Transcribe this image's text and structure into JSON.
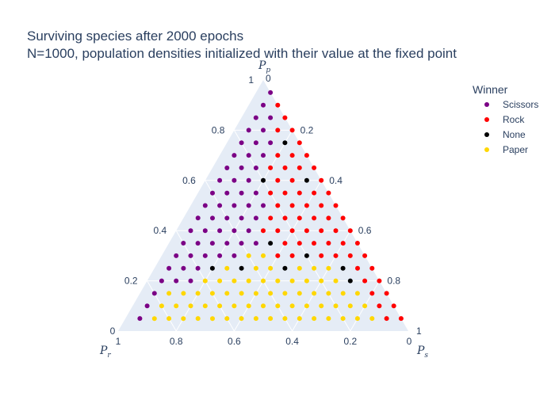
{
  "chart_data": {
    "type": "scatter",
    "subtype": "ternary",
    "title": "Surviving species after 2000 epochs",
    "subtitle": "N=1000, population densities initialized with their value at the fixed point",
    "axes": {
      "a": {
        "label": "P",
        "sub": "p",
        "ticks": [
          "0.2",
          "0.4",
          "0.6",
          "0.8",
          "1"
        ],
        "zero": "0"
      },
      "b": {
        "label": "P",
        "sub": "r",
        "ticks": [
          "0.2",
          "0.4",
          "0.6",
          "0.8",
          "1"
        ],
        "zero": "0"
      },
      "c": {
        "label": "P",
        "sub": "s",
        "ticks": [
          "0.2",
          "0.4",
          "0.6",
          "0.8",
          "1"
        ],
        "zero": "0"
      }
    },
    "legend": {
      "title": "Winner",
      "placement": "right",
      "entries": [
        {
          "name": "Scissors",
          "color": "#7b0085"
        },
        {
          "name": "Rock",
          "color": "#ff0000"
        },
        {
          "name": "None",
          "color": "#000000"
        },
        {
          "name": "Paper",
          "color": "#ffd700"
        }
      ]
    },
    "grid": true,
    "background": "#e5ecf6",
    "points_note": "p_p = 0.05..0.95 step 0.05, p_s = 0.05..(0.95-p_p) step 0.05, p_r = 1 - p_p - p_s",
    "rows": [
      {
        "pp": 0.95,
        "winners": [
          "Scissors"
        ]
      },
      {
        "pp": 0.9,
        "winners": [
          "Scissors",
          "Rock"
        ]
      },
      {
        "pp": 0.85,
        "winners": [
          "Scissors",
          "Scissors",
          "Rock"
        ]
      },
      {
        "pp": 0.8,
        "winners": [
          "Scissors",
          "Scissors",
          "Rock",
          "Rock"
        ]
      },
      {
        "pp": 0.75,
        "winners": [
          "Scissors",
          "Scissors",
          "Scissors",
          "None",
          "Rock"
        ]
      },
      {
        "pp": 0.7,
        "winners": [
          "Scissors",
          "Scissors",
          "Scissors",
          "Rock",
          "Rock",
          "Rock"
        ]
      },
      {
        "pp": 0.65,
        "winners": [
          "Scissors",
          "Scissors",
          "Scissors",
          "Rock",
          "Rock",
          "Rock",
          "Rock"
        ]
      },
      {
        "pp": 0.6,
        "winners": [
          "Scissors",
          "Scissors",
          "Scissors",
          "None",
          "Rock",
          "Rock",
          "None",
          "Rock"
        ]
      },
      {
        "pp": 0.55,
        "winners": [
          "Scissors",
          "Scissors",
          "Scissors",
          "Scissors",
          "Rock",
          "Rock",
          "Rock",
          "Rock",
          "Rock"
        ]
      },
      {
        "pp": 0.5,
        "winners": [
          "Scissors",
          "Scissors",
          "Scissors",
          "Scissors",
          "Scissors",
          "Rock",
          "Rock",
          "Rock",
          "Rock",
          "Rock"
        ]
      },
      {
        "pp": 0.45,
        "winners": [
          "Scissors",
          "Scissors",
          "Scissors",
          "Scissors",
          "Scissors",
          "Rock",
          "Rock",
          "Rock",
          "Rock",
          "Rock",
          "Rock"
        ]
      },
      {
        "pp": 0.4,
        "winners": [
          "Scissors",
          "Scissors",
          "Scissors",
          "Scissors",
          "Scissors",
          "Rock",
          "Rock",
          "Rock",
          "Rock",
          "Rock",
          "Rock",
          "Rock"
        ]
      },
      {
        "pp": 0.35,
        "winners": [
          "Scissors",
          "Scissors",
          "Scissors",
          "Scissors",
          "Scissors",
          "Scissors",
          "None",
          "Rock",
          "Rock",
          "Rock",
          "Rock",
          "Rock",
          "Rock"
        ]
      },
      {
        "pp": 0.3,
        "winners": [
          "Scissors",
          "Scissors",
          "Scissors",
          "Scissors",
          "Scissors",
          "Paper",
          "Paper",
          "Rock",
          "Rock",
          "None",
          "Rock",
          "Rock",
          "Rock",
          "Rock"
        ]
      },
      {
        "pp": 0.25,
        "winners": [
          "Scissors",
          "Scissors",
          "Scissors",
          "None",
          "Paper",
          "None",
          "Paper",
          "Paper",
          "None",
          "Paper",
          "Paper",
          "Paper",
          "None",
          "Rock",
          "Rock"
        ]
      },
      {
        "pp": 0.2,
        "winners": [
          "Scissors",
          "Scissors",
          "Scissors",
          "Paper",
          "Paper",
          "Paper",
          "Paper",
          "Paper",
          "Paper",
          "Paper",
          "Paper",
          "Paper",
          "Paper",
          "None",
          "Rock",
          "Rock"
        ]
      },
      {
        "pp": 0.15,
        "winners": [
          "Scissors",
          "Paper",
          "Paper",
          "Paper",
          "Paper",
          "Paper",
          "Paper",
          "Paper",
          "Paper",
          "Paper",
          "Paper",
          "Paper",
          "Paper",
          "Paper",
          "Paper",
          "Rock",
          "Rock"
        ]
      },
      {
        "pp": 0.1,
        "winners": [
          "Scissors",
          "Paper",
          "Paper",
          "Paper",
          "Paper",
          "Paper",
          "Paper",
          "Paper",
          "Paper",
          "Paper",
          "Paper",
          "Paper",
          "Paper",
          "Paper",
          "Paper",
          "Paper",
          "Rock",
          "Rock"
        ]
      },
      {
        "pp": 0.05,
        "winners": [
          "Scissors",
          "Paper",
          "Paper",
          "Paper",
          "Paper",
          "Paper",
          "Paper",
          "Paper",
          "Paper",
          "Paper",
          "Paper",
          "Paper",
          "Paper",
          "Paper",
          "Paper",
          "Paper",
          "Paper",
          "Rock",
          "Rock"
        ]
      }
    ]
  }
}
